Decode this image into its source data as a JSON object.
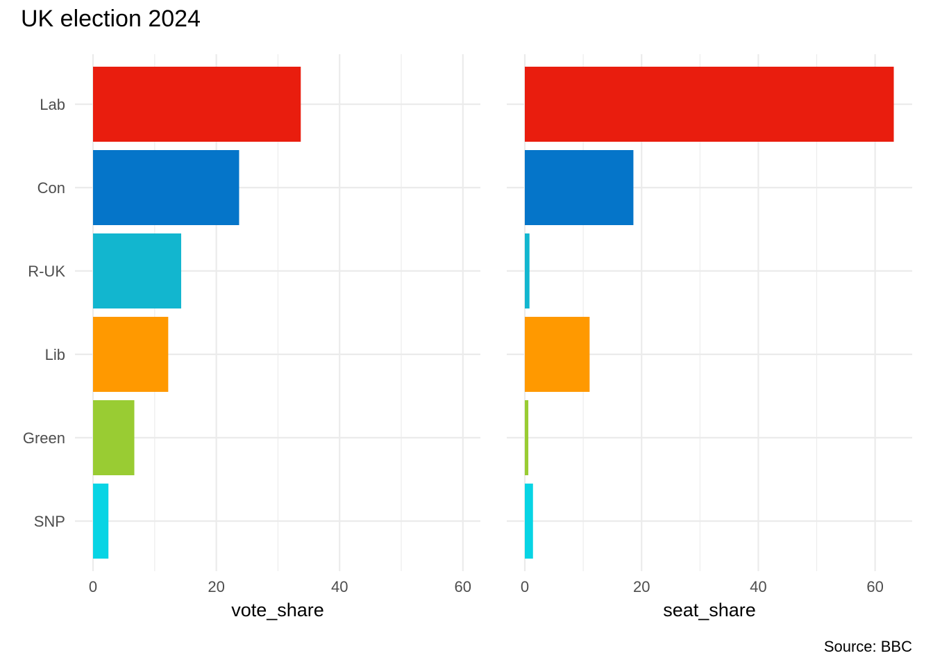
{
  "title": "UK election 2024",
  "source": "Source: BBC",
  "chart_data": {
    "type": "bar",
    "orientation": "horizontal",
    "title": "UK election 2024",
    "caption": "Source: BBC",
    "categories": [
      "Lab",
      "Con",
      "R-UK",
      "Lib",
      "Green",
      "SNP"
    ],
    "colors": {
      "Lab": "#E91D0E",
      "Con": "#0575C9",
      "R-UK": "#12B6CF",
      "Lib": "#FF9900",
      "Green": "#99CC33",
      "SNP": "#08D4E4"
    },
    "facets": [
      {
        "xlabel": "vote_share",
        "values": [
          33.7,
          23.7,
          14.3,
          12.2,
          6.7,
          2.5
        ],
        "xlim": [
          0,
          63
        ],
        "xticks": [
          0,
          20,
          40,
          60
        ]
      },
      {
        "xlabel": "seat_share",
        "values": [
          63.2,
          18.6,
          0.8,
          11.1,
          0.6,
          1.4
        ],
        "xlim": [
          0,
          66.4
        ],
        "xticks": [
          0,
          20,
          40,
          60
        ]
      }
    ],
    "grid": true,
    "legend": "none"
  }
}
